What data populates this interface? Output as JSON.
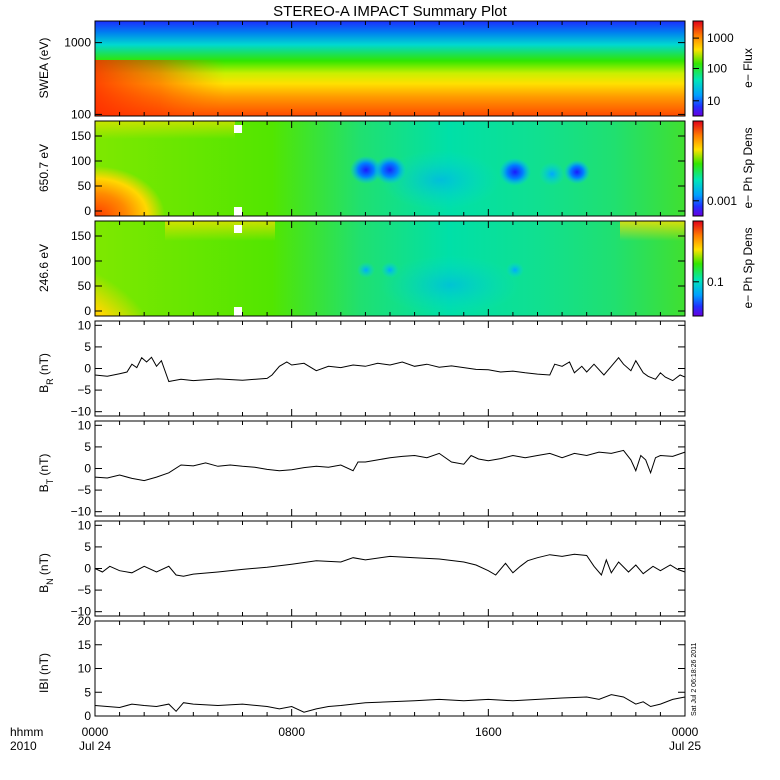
{
  "chart_data": {
    "type": "summary-plot",
    "title": "STEREO-A IMPACT Summary Plot",
    "timestamp": "Sat Jul  2 06:18:26 2011",
    "x_axis": {
      "row1_label": "hhmm",
      "row2_label": "2010",
      "ticks": [
        {
          "hour": 0,
          "label": "0000",
          "sublabel": "Jul 24"
        },
        {
          "hour": 8,
          "label": "0800",
          "sublabel": ""
        },
        {
          "hour": 16,
          "label": "1600",
          "sublabel": ""
        },
        {
          "hour": 24,
          "label": "0000",
          "sublabel": "Jul 25"
        }
      ],
      "range_hours": [
        0,
        24
      ]
    },
    "spectrograms": [
      {
        "id": "swea",
        "ylabel": "SWEA (eV)",
        "yscale": "log",
        "ylim": [
          95,
          2000
        ],
        "yticks": [
          100,
          1000
        ],
        "ytick_labels": [
          "100",
          "1000"
        ],
        "colorbar_label": "e− Flux",
        "colorbar_ticks": [
          "1000",
          "100",
          "10"
        ],
        "colorbar_tick_positions": [
          0.18,
          0.5,
          0.84
        ]
      },
      {
        "id": "pad650",
        "ylabel": "650.7 eV",
        "yscale": "linear",
        "ylim": [
          -10,
          180
        ],
        "yticks": [
          0,
          50,
          100,
          150
        ],
        "ytick_labels": [
          "0",
          "50",
          "100",
          "150"
        ],
        "colorbar_label": "e− Ph Sp Dens",
        "colorbar_ticks": [
          "0.001"
        ],
        "colorbar_tick_positions": [
          0.84
        ]
      },
      {
        "id": "pad246",
        "ylabel": "246.6 eV",
        "yscale": "linear",
        "ylim": [
          -10,
          180
        ],
        "yticks": [
          0,
          50,
          100,
          150
        ],
        "ytick_labels": [
          "0",
          "50",
          "100",
          "150"
        ],
        "colorbar_label": "e− Ph Sp Dens",
        "colorbar_ticks": [
          "0.1"
        ],
        "colorbar_tick_positions": [
          0.64
        ]
      }
    ],
    "lines": [
      {
        "id": "br",
        "ylabel_main": "B",
        "ylabel_sub": "R",
        "ylabel_unit": " (nT)",
        "ylim": [
          -11,
          11
        ],
        "yticks": [
          -10,
          -5,
          0,
          5,
          10
        ],
        "ytick_labels": [
          "−10",
          "−5",
          "0",
          "5",
          "10"
        ],
        "points": [
          [
            0,
            -1.5
          ],
          [
            0.5,
            -1.8
          ],
          [
            1,
            -1.2
          ],
          [
            1.3,
            -0.8
          ],
          [
            1.5,
            1
          ],
          [
            1.7,
            0.2
          ],
          [
            1.9,
            2.5
          ],
          [
            2.1,
            1.5
          ],
          [
            2.3,
            2.6
          ],
          [
            2.5,
            0.5
          ],
          [
            2.7,
            1.8
          ],
          [
            3,
            -3
          ],
          [
            3.5,
            -2.5
          ],
          [
            4,
            -2.8
          ],
          [
            5,
            -2.4
          ],
          [
            6,
            -2.7
          ],
          [
            7,
            -2.3
          ],
          [
            7.2,
            -1.5
          ],
          [
            7.5,
            0.5
          ],
          [
            7.8,
            1.5
          ],
          [
            8,
            0.8
          ],
          [
            8.5,
            1.2
          ],
          [
            9,
            -0.5
          ],
          [
            9.5,
            0.5
          ],
          [
            10,
            0.2
          ],
          [
            10.5,
            0.8
          ],
          [
            11,
            0.5
          ],
          [
            11.5,
            1.2
          ],
          [
            12,
            0.8
          ],
          [
            12.5,
            1.5
          ],
          [
            13,
            0.5
          ],
          [
            13.5,
            1
          ],
          [
            14,
            0.3
          ],
          [
            14.5,
            0.6
          ],
          [
            15,
            0.2
          ],
          [
            15.5,
            -0.2
          ],
          [
            16,
            -0.3
          ],
          [
            16.5,
            -0.8
          ],
          [
            17,
            -0.6
          ],
          [
            17.5,
            -1
          ],
          [
            18,
            -1.3
          ],
          [
            18.5,
            -1.5
          ],
          [
            18.7,
            1
          ],
          [
            19,
            0.5
          ],
          [
            19.3,
            1.5
          ],
          [
            19.5,
            -1
          ],
          [
            19.8,
            0.5
          ],
          [
            20,
            -0.8
          ],
          [
            20.3,
            1
          ],
          [
            20.7,
            -1.5
          ],
          [
            21,
            0.5
          ],
          [
            21.3,
            2.5
          ],
          [
            21.5,
            1
          ],
          [
            21.8,
            -0.5
          ],
          [
            22,
            1.8
          ],
          [
            22.3,
            -1
          ],
          [
            22.5,
            -1.8
          ],
          [
            22.8,
            -2.5
          ],
          [
            23,
            -1
          ],
          [
            23.2,
            -2
          ],
          [
            23.5,
            -2.8
          ],
          [
            23.8,
            -1.5
          ],
          [
            24,
            -2
          ]
        ]
      },
      {
        "id": "bt",
        "ylabel_main": "B",
        "ylabel_sub": "T",
        "ylabel_unit": " (nT)",
        "ylim": [
          -11,
          11
        ],
        "yticks": [
          -10,
          -5,
          0,
          5,
          10
        ],
        "ytick_labels": [
          "−10",
          "−5",
          "0",
          "5",
          "10"
        ],
        "points": [
          [
            0,
            -2
          ],
          [
            0.5,
            -2.2
          ],
          [
            1,
            -1.5
          ],
          [
            1.5,
            -2.3
          ],
          [
            2,
            -2.8
          ],
          [
            2.5,
            -2
          ],
          [
            3,
            -1
          ],
          [
            3.5,
            0.8
          ],
          [
            4,
            0.6
          ],
          [
            4.5,
            1.3
          ],
          [
            5,
            0.5
          ],
          [
            5.5,
            0.8
          ],
          [
            6,
            0.5
          ],
          [
            6.5,
            0.3
          ],
          [
            7,
            -0.2
          ],
          [
            7.5,
            -0.5
          ],
          [
            8,
            -0.3
          ],
          [
            8.5,
            0.2
          ],
          [
            9,
            0.5
          ],
          [
            9.5,
            0.3
          ],
          [
            10,
            0.8
          ],
          [
            10.5,
            -0.5
          ],
          [
            10.7,
            1.5
          ],
          [
            11,
            1.5
          ],
          [
            11.5,
            2
          ],
          [
            12,
            2.5
          ],
          [
            12.5,
            2.8
          ],
          [
            13,
            3
          ],
          [
            13.5,
            2.5
          ],
          [
            14,
            3.5
          ],
          [
            14.5,
            1.5
          ],
          [
            15,
            1
          ],
          [
            15.3,
            3
          ],
          [
            15.6,
            2.2
          ],
          [
            16,
            1.8
          ],
          [
            16.5,
            2.3
          ],
          [
            17,
            3
          ],
          [
            17.5,
            2.5
          ],
          [
            18,
            3
          ],
          [
            18.5,
            3.5
          ],
          [
            19,
            2.5
          ],
          [
            19.5,
            3.5
          ],
          [
            20,
            3
          ],
          [
            20.5,
            3.8
          ],
          [
            21,
            3.5
          ],
          [
            21.5,
            4.2
          ],
          [
            21.8,
            2
          ],
          [
            22,
            -0.5
          ],
          [
            22.2,
            3
          ],
          [
            22.4,
            2
          ],
          [
            22.6,
            -1
          ],
          [
            22.8,
            2.5
          ],
          [
            23,
            3
          ],
          [
            23.5,
            2.8
          ],
          [
            24,
            3.8
          ]
        ]
      },
      {
        "id": "bn",
        "ylabel_main": "B",
        "ylabel_sub": "N",
        "ylabel_unit": " (nT)",
        "ylim": [
          -11,
          11
        ],
        "yticks": [
          -10,
          -5,
          0,
          5,
          10
        ],
        "ytick_labels": [
          "−10",
          "−5",
          "0",
          "5",
          "10"
        ],
        "points": [
          [
            0,
            0
          ],
          [
            0.3,
            -0.8
          ],
          [
            0.6,
            0.5
          ],
          [
            1,
            -0.5
          ],
          [
            1.5,
            -1
          ],
          [
            2,
            0.5
          ],
          [
            2.5,
            -0.8
          ],
          [
            3,
            0.5
          ],
          [
            3.3,
            -1.5
          ],
          [
            3.6,
            -1.8
          ],
          [
            4,
            -1.3
          ],
          [
            5,
            -0.8
          ],
          [
            6,
            -0.2
          ],
          [
            7,
            0.3
          ],
          [
            8,
            1
          ],
          [
            9,
            1.8
          ],
          [
            10,
            1.5
          ],
          [
            10.5,
            2.5
          ],
          [
            11,
            2
          ],
          [
            12,
            2.8
          ],
          [
            13,
            2.5
          ],
          [
            14,
            2.2
          ],
          [
            15,
            1.5
          ],
          [
            15.5,
            0.8
          ],
          [
            16,
            -0.5
          ],
          [
            16.3,
            -1.5
          ],
          [
            16.7,
            1.2
          ],
          [
            17,
            -1
          ],
          [
            17.3,
            0.5
          ],
          [
            17.6,
            1.8
          ],
          [
            18,
            2.5
          ],
          [
            18.5,
            3.2
          ],
          [
            19,
            2.8
          ],
          [
            19.5,
            3.3
          ],
          [
            20,
            3
          ],
          [
            20.3,
            0.5
          ],
          [
            20.6,
            -1.5
          ],
          [
            20.8,
            2
          ],
          [
            21,
            -1
          ],
          [
            21.3,
            1.5
          ],
          [
            21.7,
            -0.8
          ],
          [
            22,
            0.8
          ],
          [
            22.3,
            -1.2
          ],
          [
            22.7,
            0.5
          ],
          [
            23,
            -0.5
          ],
          [
            23.4,
            0.8
          ],
          [
            23.7,
            -0.2
          ],
          [
            24,
            -0.8
          ]
        ]
      },
      {
        "id": "bmag",
        "ylabel_main": "IBI",
        "ylabel_sub": "",
        "ylabel_unit": " (nT)",
        "ylim": [
          0,
          20
        ],
        "yticks": [
          0,
          5,
          10,
          15,
          20
        ],
        "ytick_labels": [
          "0",
          "5",
          "10",
          "15",
          "20"
        ],
        "points": [
          [
            0,
            2.2
          ],
          [
            0.5,
            2
          ],
          [
            1,
            1.8
          ],
          [
            1.5,
            2.5
          ],
          [
            2,
            2.2
          ],
          [
            2.5,
            2
          ],
          [
            3,
            2.5
          ],
          [
            3.3,
            1
          ],
          [
            3.6,
            2.8
          ],
          [
            4,
            2.5
          ],
          [
            5,
            2.2
          ],
          [
            6,
            2.5
          ],
          [
            7,
            2
          ],
          [
            7.5,
            1.5
          ],
          [
            8,
            2
          ],
          [
            8.5,
            0.8
          ],
          [
            9,
            1.5
          ],
          [
            9.5,
            2
          ],
          [
            10,
            2.2
          ],
          [
            10.5,
            2.5
          ],
          [
            11,
            2.8
          ],
          [
            12,
            3
          ],
          [
            13,
            3.2
          ],
          [
            14,
            3.5
          ],
          [
            15,
            3.2
          ],
          [
            16,
            3.5
          ],
          [
            17,
            3.2
          ],
          [
            18,
            3.5
          ],
          [
            19,
            3.8
          ],
          [
            20,
            4
          ],
          [
            20.5,
            3.5
          ],
          [
            21,
            4.5
          ],
          [
            21.5,
            4
          ],
          [
            22,
            2.5
          ],
          [
            22.3,
            3
          ],
          [
            22.6,
            2
          ],
          [
            23,
            2.5
          ],
          [
            23.5,
            3.5
          ],
          [
            24,
            4
          ]
        ]
      }
    ]
  }
}
